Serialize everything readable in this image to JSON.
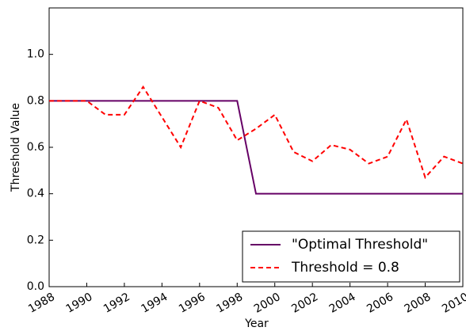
{
  "chart_data": {
    "type": "line",
    "x_label": "Year",
    "y_label": "Threshold Value",
    "x": [
      1988,
      1989,
      1990,
      1991,
      1992,
      1993,
      1994,
      1995,
      1996,
      1997,
      1998,
      1999,
      2000,
      2001,
      2002,
      2003,
      2004,
      2005,
      2006,
      2007,
      2008,
      2009,
      2010
    ],
    "series": [
      {
        "name": "\"Optimal Threshold\"",
        "color": "#660066",
        "dash": false,
        "values": [
          0.8,
          0.8,
          0.8,
          0.8,
          0.8,
          0.8,
          0.8,
          0.8,
          0.8,
          0.8,
          0.8,
          0.4,
          0.4,
          0.4,
          0.4,
          0.4,
          0.4,
          0.4,
          0.4,
          0.4,
          0.4,
          0.4,
          0.4
        ]
      },
      {
        "name": "Threshold = 0.8",
        "color": "#ff0000",
        "dash": true,
        "values": [
          0.8,
          0.8,
          0.8,
          0.74,
          0.74,
          0.86,
          0.73,
          0.6,
          0.8,
          0.77,
          0.63,
          0.68,
          0.74,
          0.58,
          0.54,
          0.61,
          0.59,
          0.53,
          0.56,
          0.72,
          0.47,
          0.56,
          0.53
        ]
      }
    ],
    "xlim": [
      1988,
      2010
    ],
    "xticks": [
      1988,
      1990,
      1992,
      1994,
      1996,
      1998,
      2000,
      2002,
      2004,
      2006,
      2008,
      2010
    ],
    "ylim": [
      0,
      1.2
    ],
    "yticks": [
      {
        "value": 0,
        "label": "0.0"
      },
      0.2,
      0.4,
      0.6,
      0.8,
      {
        "value": 1,
        "label": "1.0"
      }
    ],
    "legend": "lower right"
  }
}
